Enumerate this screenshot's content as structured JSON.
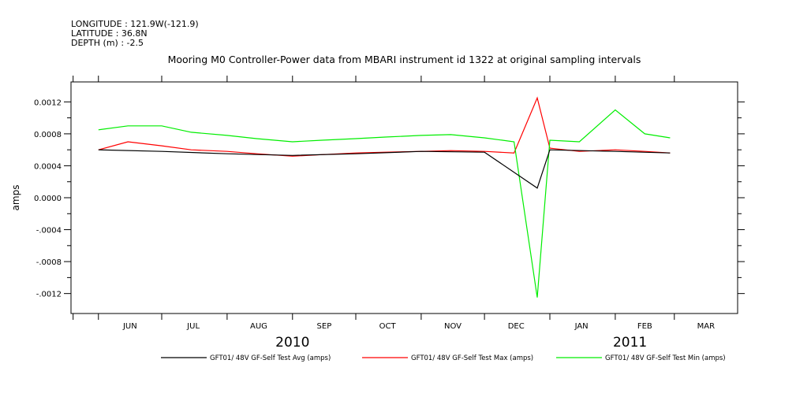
{
  "header": {
    "longitude": "LONGITUDE : 121.9W(-121.9)",
    "latitude": "LATITUDE : 36.8N",
    "depth": "DEPTH (m) : -2.5"
  },
  "chart_data": {
    "type": "line",
    "title": "Mooring M0 Controller-Power data from MBARI instrument id 1322 at original sampling intervals",
    "xlabel": "",
    "ylabel": "amps",
    "x_range": [
      "2010-05-19",
      "2011-03-31"
    ],
    "ylim": [
      -0.00145,
      0.00145
    ],
    "x_tick_labels": [
      "JUN",
      "JUL",
      "AUG",
      "SEP",
      "OCT",
      "NOV",
      "DEC",
      "JAN",
      "FEB",
      "MAR"
    ],
    "year_labels": [
      "2010",
      "2011"
    ],
    "y_ticks": [
      0.0012,
      0.0008,
      0.0004,
      0.0,
      -0.0004,
      -0.0008,
      -0.0012
    ],
    "y_tick_labels": [
      "0.0012",
      "0.0008",
      "0.0004",
      "0.0000",
      "-.0004",
      "-.0008",
      "-.0012"
    ],
    "grid": false,
    "legend_position": "bottom",
    "series": [
      {
        "name": "GFT01/ 48V GF-Self Test Avg (amps)",
        "color": "#000000",
        "x": [
          "2010-06-01",
          "2010-07-01",
          "2010-08-01",
          "2010-09-01",
          "2010-10-01",
          "2010-11-01",
          "2010-12-01",
          "2010-12-26",
          "2011-01-01",
          "2011-02-01",
          "2011-02-27"
        ],
        "values": [
          0.0006,
          0.00058,
          0.00055,
          0.00053,
          0.00055,
          0.00058,
          0.00057,
          0.00012,
          0.0006,
          0.00058,
          0.00056
        ]
      },
      {
        "name": "GFT01/ 48V GF-Self Test Max (amps)",
        "color": "#ff0000",
        "x": [
          "2010-06-01",
          "2010-06-15",
          "2010-07-01",
          "2010-07-15",
          "2010-08-01",
          "2010-08-15",
          "2010-09-01",
          "2010-09-15",
          "2010-10-01",
          "2010-10-15",
          "2010-11-01",
          "2010-11-15",
          "2010-12-01",
          "2010-12-15",
          "2010-12-26",
          "2011-01-01",
          "2011-01-15",
          "2011-02-01",
          "2011-02-15",
          "2011-02-27"
        ],
        "values": [
          0.0006,
          0.0007,
          0.00065,
          0.0006,
          0.00058,
          0.00055,
          0.00052,
          0.00054,
          0.00056,
          0.00057,
          0.00058,
          0.00059,
          0.00058,
          0.00056,
          0.00125,
          0.00062,
          0.00058,
          0.0006,
          0.00058,
          0.00056
        ]
      },
      {
        "name": "GFT01/ 48V GF-Self Test Min (amps)",
        "color": "#00ee00",
        "x": [
          "2010-06-01",
          "2010-06-15",
          "2010-07-01",
          "2010-07-15",
          "2010-08-01",
          "2010-08-15",
          "2010-09-01",
          "2010-09-15",
          "2010-10-01",
          "2010-10-15",
          "2010-11-01",
          "2010-11-15",
          "2010-12-01",
          "2010-12-15",
          "2010-12-26",
          "2011-01-01",
          "2011-01-15",
          "2011-02-01",
          "2011-02-15",
          "2011-02-27"
        ],
        "values": [
          0.00085,
          0.0009,
          0.0009,
          0.00082,
          0.00078,
          0.00074,
          0.0007,
          0.00072,
          0.00074,
          0.00076,
          0.00078,
          0.00079,
          0.00075,
          0.0007,
          -0.00125,
          0.00072,
          0.0007,
          0.0011,
          0.0008,
          0.00075
        ]
      }
    ]
  }
}
